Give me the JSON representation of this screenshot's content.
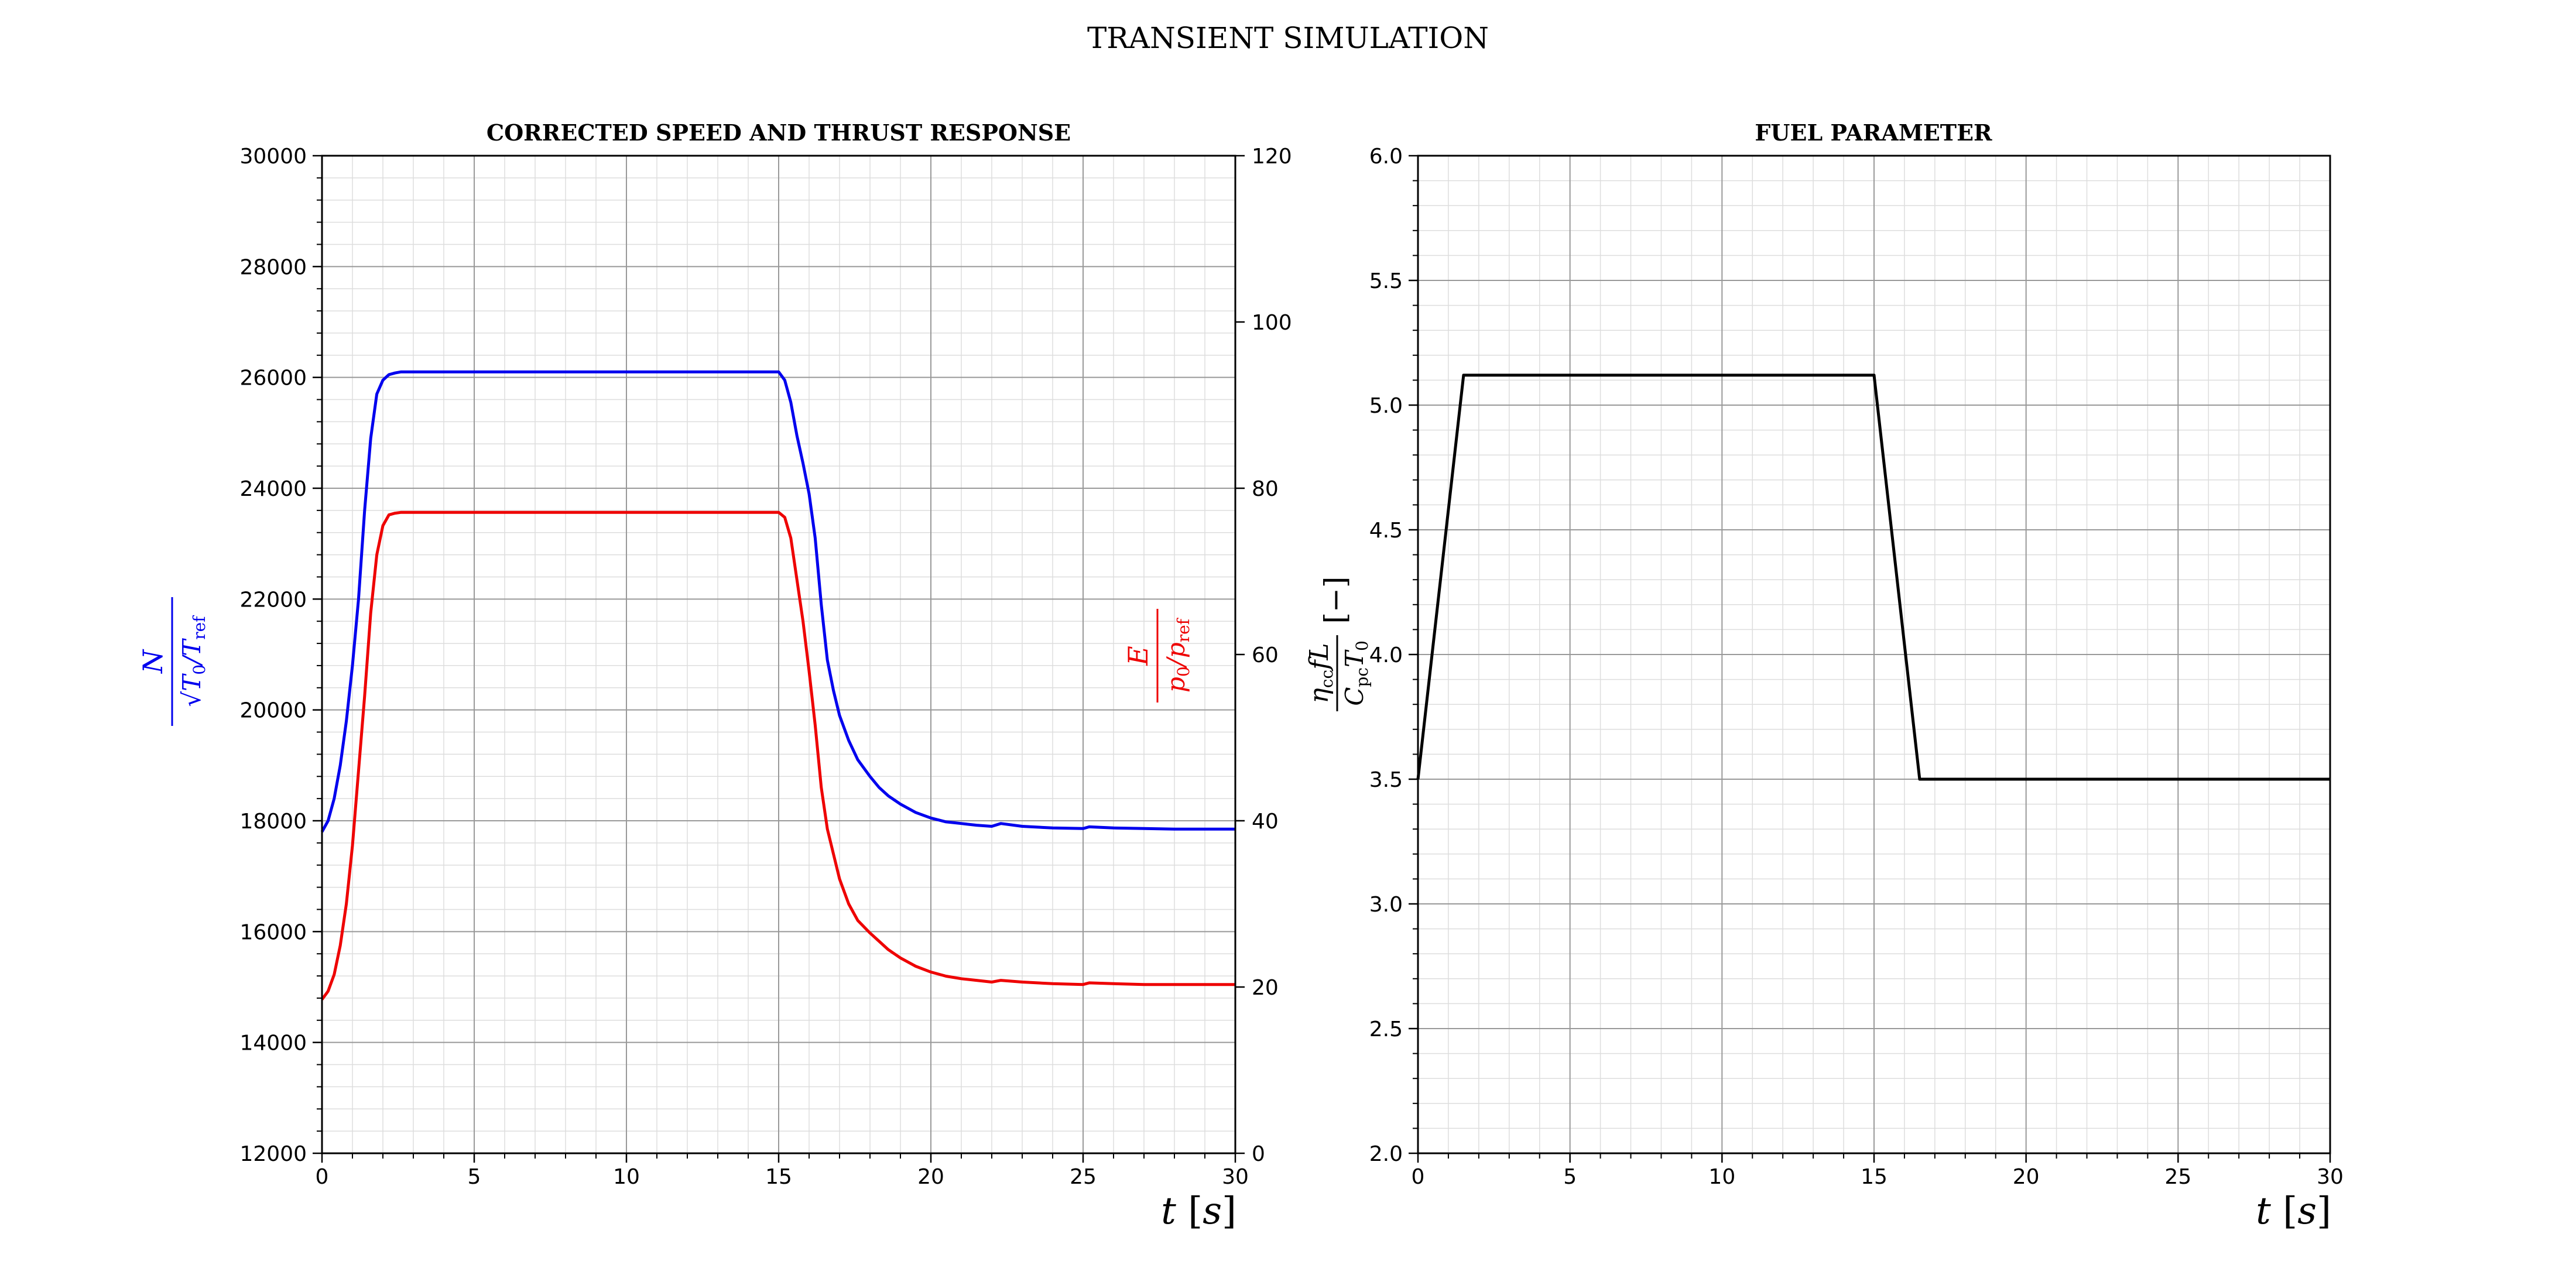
{
  "figure": {
    "suptitle": "TRANSIENT SIMULATION"
  },
  "chart_data": [
    {
      "type": "line",
      "title": "CORRECTED SPEED AND THRUST RESPONSE",
      "xlabel": "t [s]",
      "ylabel": "N / √(T0/Tref)",
      "ylabel2": "E / (p0/pref)",
      "xlim": [
        0,
        30
      ],
      "ylim": [
        12000,
        30000
      ],
      "ylim2": [
        0,
        120
      ],
      "x_ticks": [
        0,
        5,
        10,
        15,
        20,
        25,
        30
      ],
      "y_ticks": [
        12000,
        14000,
        16000,
        18000,
        20000,
        22000,
        24000,
        26000,
        28000,
        30000
      ],
      "y2_ticks": [
        0,
        20,
        40,
        60,
        80,
        100,
        120
      ],
      "grid": true,
      "legend": "none",
      "series": [
        {
          "axis": "left",
          "color": "#0000ee",
          "x": [
            0,
            0.2,
            0.4,
            0.6,
            0.8,
            1.0,
            1.2,
            1.4,
            1.6,
            1.8,
            2.0,
            2.2,
            2.4,
            2.6,
            2.8,
            3.0,
            5,
            10,
            15,
            15.2,
            15.4,
            15.6,
            15.8,
            16.0,
            16.2,
            16.4,
            16.6,
            16.8,
            17.0,
            17.3,
            17.6,
            18.0,
            18.3,
            18.6,
            19.0,
            19.5,
            20.0,
            20.5,
            21.0,
            21.5,
            22.0,
            22.3,
            23.0,
            24.0,
            25.0,
            25.2,
            26,
            27,
            28,
            29,
            30
          ],
          "y": [
            17800,
            18000,
            18400,
            19000,
            19800,
            20800,
            22000,
            23600,
            24900,
            25700,
            25950,
            26050,
            26080,
            26100,
            26100,
            26100,
            26100,
            26100,
            26100,
            25950,
            25550,
            24950,
            24450,
            23900,
            23100,
            21900,
            20900,
            20350,
            19900,
            19450,
            19100,
            18800,
            18600,
            18450,
            18300,
            18150,
            18050,
            17980,
            17950,
            17920,
            17900,
            17950,
            17900,
            17870,
            17860,
            17890,
            17870,
            17860,
            17850,
            17850,
            17850
          ]
        },
        {
          "axis": "right",
          "color": "#ee0000",
          "x": [
            0,
            0.2,
            0.4,
            0.6,
            0.8,
            1.0,
            1.2,
            1.4,
            1.6,
            1.8,
            2.0,
            2.2,
            2.4,
            2.6,
            2.8,
            3.0,
            5,
            10,
            15,
            15.2,
            15.4,
            15.6,
            15.8,
            16.0,
            16.2,
            16.4,
            16.6,
            16.8,
            17.0,
            17.3,
            17.6,
            18.0,
            18.3,
            18.6,
            19.0,
            19.5,
            20.0,
            20.5,
            21.0,
            21.5,
            22.0,
            22.3,
            23.0,
            24.0,
            25.0,
            25.2,
            26,
            27,
            28,
            29,
            30
          ],
          "y": [
            18.5,
            19.5,
            21.5,
            25,
            30,
            37,
            46,
            55,
            65,
            72,
            75.5,
            76.8,
            77,
            77.1,
            77.1,
            77.1,
            77.1,
            77.1,
            77.1,
            76.5,
            74,
            69,
            64,
            58,
            51.5,
            44,
            39,
            36,
            33,
            30,
            28,
            26.5,
            25.5,
            24.5,
            23.5,
            22.5,
            21.8,
            21.3,
            21,
            20.8,
            20.6,
            20.8,
            20.6,
            20.4,
            20.3,
            20.5,
            20.4,
            20.3,
            20.3,
            20.3,
            20.3
          ]
        }
      ]
    },
    {
      "type": "line",
      "title": "FUEL PARAMETER",
      "xlabel": "t [s]",
      "ylabel": "η_cc f L / (C_pc T0) [−]",
      "xlim": [
        0,
        30
      ],
      "ylim": [
        2.0,
        6.0
      ],
      "x_ticks": [
        0,
        5,
        10,
        15,
        20,
        25,
        30
      ],
      "y_ticks": [
        "2.0",
        "2.5",
        "3.0",
        "3.5",
        "4.0",
        "4.5",
        "5.0",
        "5.5",
        "6.0"
      ],
      "grid": true,
      "legend": "none",
      "series": [
        {
          "axis": "left",
          "color": "#000000",
          "x": [
            0,
            1.5,
            15,
            16.5,
            30
          ],
          "y": [
            3.5,
            5.12,
            5.12,
            3.5,
            3.5
          ]
        }
      ]
    }
  ]
}
